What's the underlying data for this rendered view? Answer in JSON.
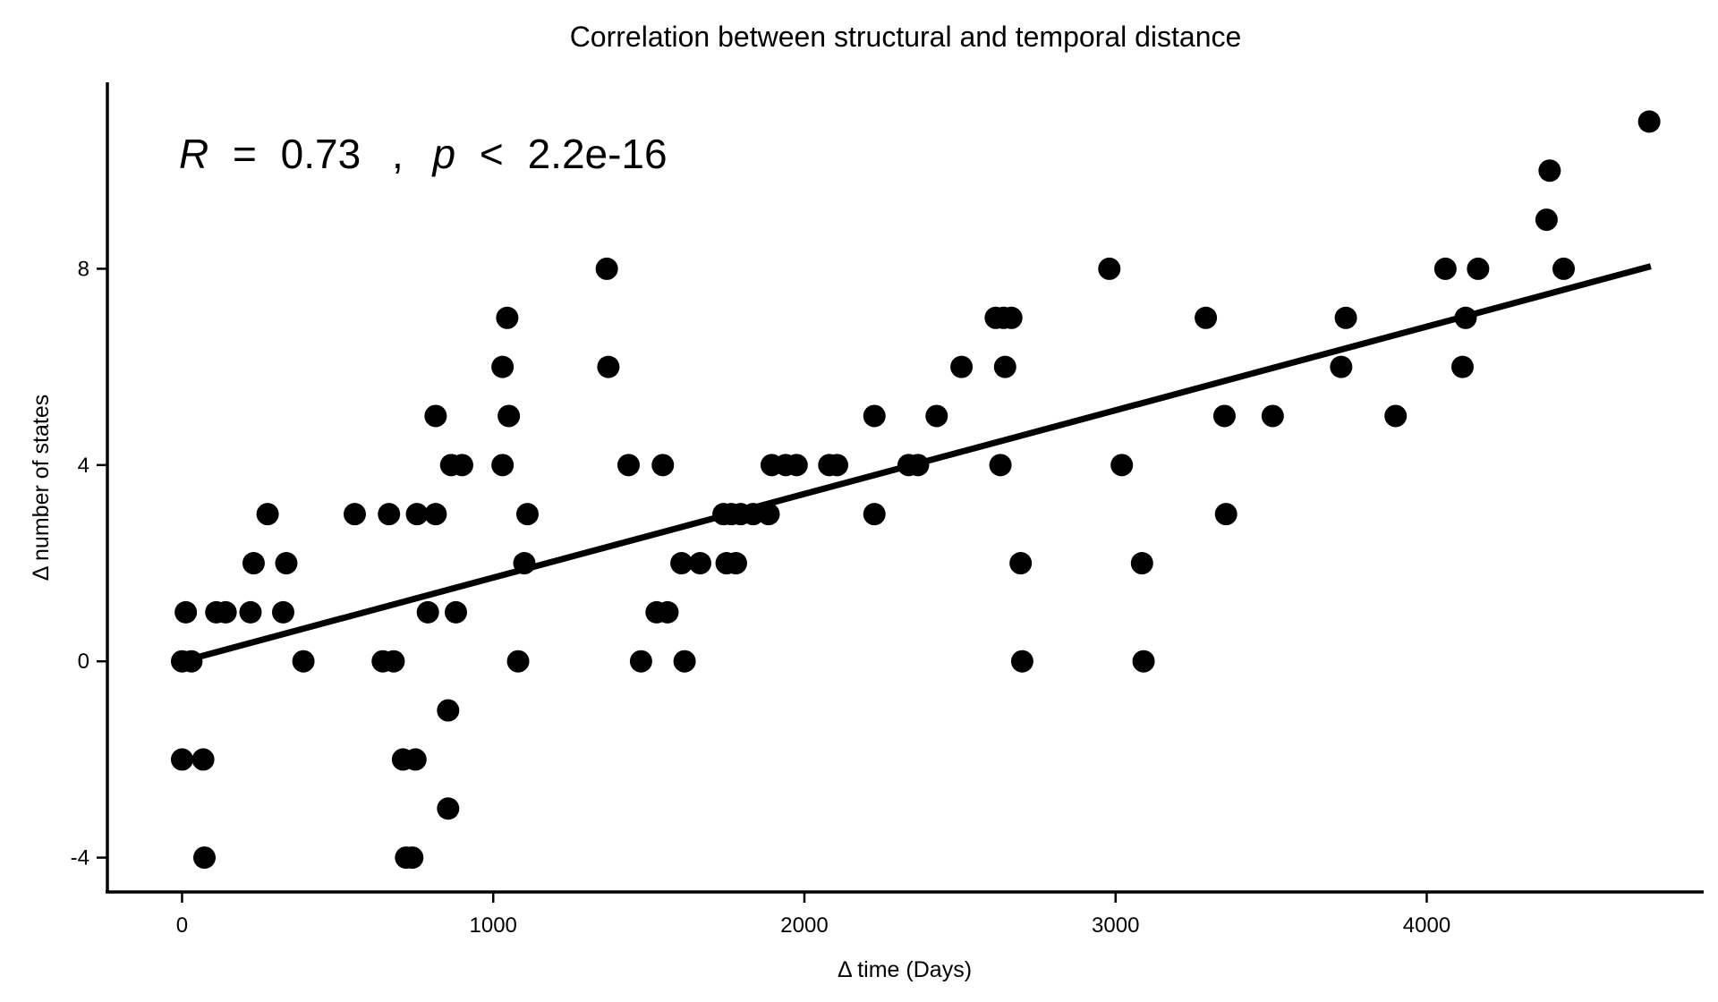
{
  "chart_data": {
    "type": "scatter",
    "title": "Correlation between structural and temporal distance",
    "xlabel": "Δ time (Days)",
    "ylabel": "Δ number of states",
    "xlim": [
      -240,
      4890
    ],
    "ylim": [
      -4.7,
      11.8
    ],
    "xticks": [
      0,
      1000,
      2000,
      3000,
      4000
    ],
    "yticks": [
      -4,
      0,
      4,
      8
    ],
    "grid": false,
    "legend": "none",
    "annotation": {
      "r_symbol": "R",
      "r_op": "=",
      "r_value": "0.73",
      "sep": ",",
      "p_symbol": "p",
      "p_op": "<",
      "p_value": "2.2e-16"
    },
    "trendline": {
      "x": [
        0,
        4720
      ],
      "y": [
        0,
        8.05
      ]
    },
    "series": [
      {
        "points": [
          [
            0,
            0
          ],
          [
            0,
            -2
          ],
          [
            12,
            1
          ],
          [
            30,
            0
          ],
          [
            68,
            -2
          ],
          [
            72,
            -4
          ],
          [
            110,
            1
          ],
          [
            140,
            1
          ],
          [
            220,
            1
          ],
          [
            230,
            2
          ],
          [
            275,
            3
          ],
          [
            325,
            1
          ],
          [
            335,
            2
          ],
          [
            390,
            0
          ],
          [
            555,
            3
          ],
          [
            645,
            0
          ],
          [
            665,
            3
          ],
          [
            680,
            0
          ],
          [
            710,
            -2
          ],
          [
            720,
            -4
          ],
          [
            740,
            -4
          ],
          [
            750,
            -2
          ],
          [
            755,
            3
          ],
          [
            790,
            1
          ],
          [
            815,
            5
          ],
          [
            815,
            3
          ],
          [
            855,
            -1
          ],
          [
            855,
            -3
          ],
          [
            865,
            4
          ],
          [
            880,
            1
          ],
          [
            900,
            4
          ],
          [
            1030,
            6
          ],
          [
            1030,
            4
          ],
          [
            1045,
            7
          ],
          [
            1050,
            5
          ],
          [
            1080,
            0
          ],
          [
            1100,
            2
          ],
          [
            1110,
            3
          ],
          [
            1365,
            8
          ],
          [
            1370,
            6
          ],
          [
            1435,
            4
          ],
          [
            1475,
            0
          ],
          [
            1525,
            1
          ],
          [
            1545,
            4
          ],
          [
            1560,
            1
          ],
          [
            1605,
            2
          ],
          [
            1615,
            0
          ],
          [
            1665,
            2
          ],
          [
            1740,
            3
          ],
          [
            1750,
            2
          ],
          [
            1765,
            3
          ],
          [
            1780,
            2
          ],
          [
            1795,
            3
          ],
          [
            1835,
            3
          ],
          [
            1885,
            3
          ],
          [
            1895,
            4
          ],
          [
            1940,
            4
          ],
          [
            1975,
            4
          ],
          [
            2080,
            4
          ],
          [
            2105,
            4
          ],
          [
            2225,
            5
          ],
          [
            2225,
            3
          ],
          [
            2335,
            4
          ],
          [
            2365,
            4
          ],
          [
            2425,
            5
          ],
          [
            2505,
            6
          ],
          [
            2615,
            7
          ],
          [
            2630,
            4
          ],
          [
            2640,
            7
          ],
          [
            2645,
            6
          ],
          [
            2665,
            7
          ],
          [
            2695,
            2
          ],
          [
            2700,
            0
          ],
          [
            2980,
            8
          ],
          [
            3020,
            4
          ],
          [
            3085,
            2
          ],
          [
            3090,
            0
          ],
          [
            3290,
            7
          ],
          [
            3350,
            5
          ],
          [
            3355,
            3
          ],
          [
            3505,
            5
          ],
          [
            3725,
            6
          ],
          [
            3740,
            7
          ],
          [
            3900,
            5
          ],
          [
            4060,
            8
          ],
          [
            4115,
            6
          ],
          [
            4125,
            7
          ],
          [
            4165,
            8
          ],
          [
            4385,
            9
          ],
          [
            4395,
            10
          ],
          [
            4440,
            8
          ],
          [
            4715,
            11
          ]
        ]
      }
    ]
  }
}
